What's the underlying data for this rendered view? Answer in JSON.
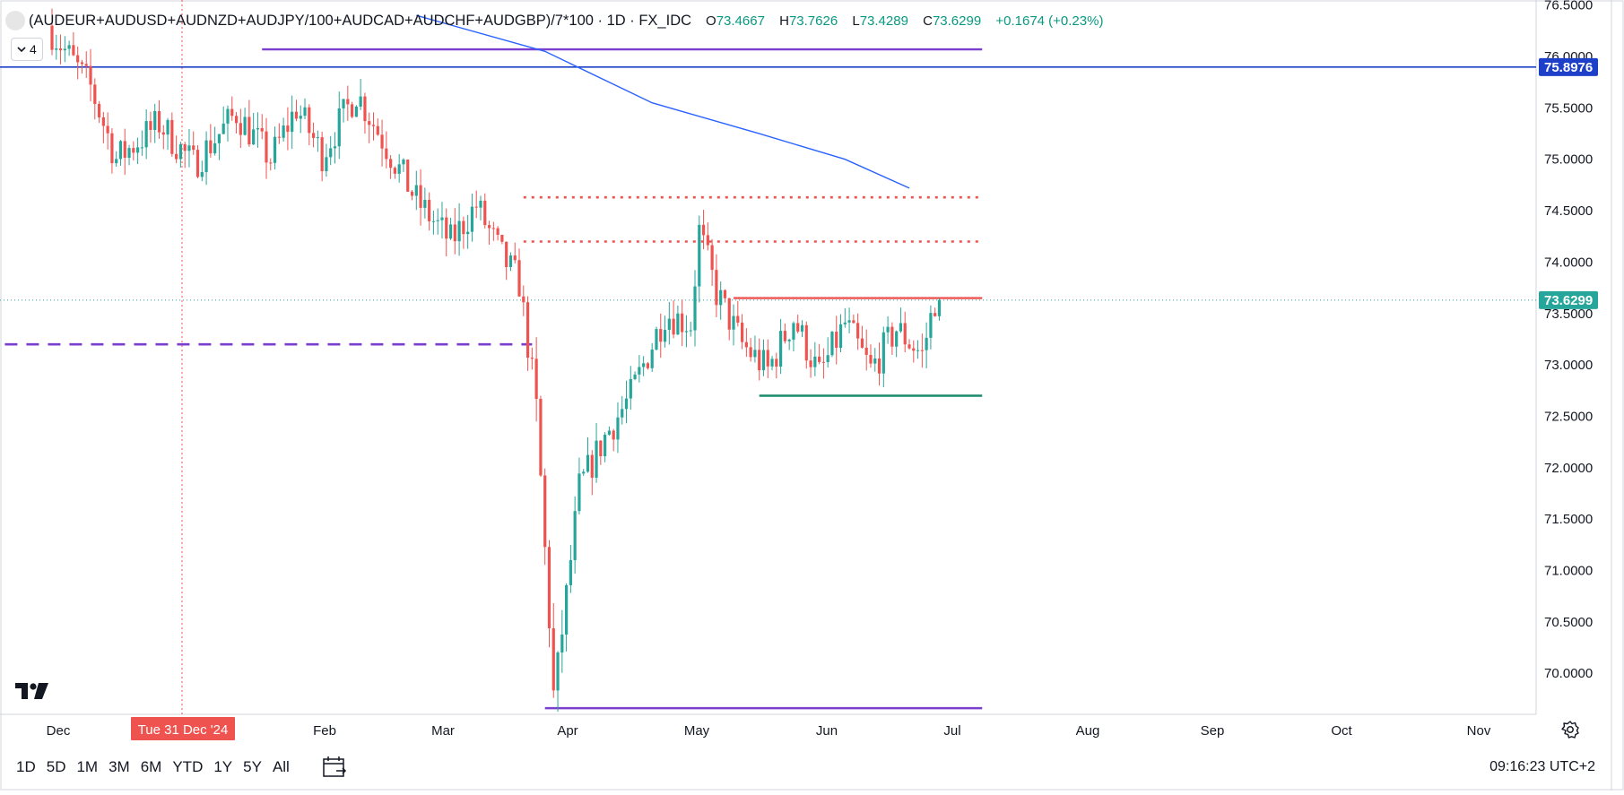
{
  "symbol": "(AUDEUR+AUDUSD+AUDNZD+AUDJPY/100+AUDCAD+AUDCHF+AUDGBP)/7*100 · 1D · FX_IDC",
  "ohlc": {
    "o_label": "O",
    "o": "73.4667",
    "h_label": "H",
    "h": "73.7626",
    "l_label": "L",
    "l": "73.4289",
    "c_label": "C",
    "c": "73.6299",
    "change": "+0.1674 (+0.23%)"
  },
  "collapse_count": "4",
  "ranges": [
    "1D",
    "5D",
    "1M",
    "3M",
    "6M",
    "YTD",
    "1Y",
    "5Y",
    "All"
  ],
  "clock": "09:16:23 UTC+2",
  "colors": {
    "up": "#26a69a",
    "down": "#ef5350",
    "ma": "#2962ff",
    "purple": "#7b3fcf",
    "hline": "#1e40c9"
  },
  "chart_data": {
    "type": "candlestick",
    "y_ticks": [
      "76.5000",
      "76.0000",
      "75.5000",
      "75.0000",
      "74.5000",
      "74.0000",
      "73.5000",
      "73.0000",
      "72.5000",
      "72.0000",
      "71.5000",
      "71.0000",
      "70.5000",
      "70.0000"
    ],
    "ylim": [
      69.6,
      76.55
    ],
    "x_ticks": [
      "Dec",
      "Feb",
      "Mar",
      "Apr",
      "May",
      "Jun",
      "Jul",
      "Aug",
      "Sep",
      "Oct",
      "Nov"
    ],
    "crosshair_date": "Tue 31 Dec '24",
    "last_price": "73.6299",
    "hline_price": "75.8976",
    "anchors": [
      {
        "t": 0,
        "v": 76.3
      },
      {
        "t": 10,
        "v": 75.7
      },
      {
        "t": 16,
        "v": 75.0
      },
      {
        "t": 26,
        "v": 75.35
      },
      {
        "t": 34,
        "v": 74.95
      },
      {
        "t": 44,
        "v": 75.45
      },
      {
        "t": 52,
        "v": 75.0
      },
      {
        "t": 58,
        "v": 75.5
      },
      {
        "t": 64,
        "v": 75.05
      },
      {
        "t": 72,
        "v": 75.65
      },
      {
        "t": 78,
        "v": 75.2
      },
      {
        "t": 86,
        "v": 74.6
      },
      {
        "t": 94,
        "v": 74.2
      },
      {
        "t": 100,
        "v": 74.55
      },
      {
        "t": 106,
        "v": 74.05
      },
      {
        "t": 110,
        "v": 73.8
      },
      {
        "t": 114,
        "v": 72.6
      },
      {
        "t": 118,
        "v": 69.8
      },
      {
        "t": 120,
        "v": 70.4
      },
      {
        "t": 124,
        "v": 71.8
      },
      {
        "t": 130,
        "v": 72.3
      },
      {
        "t": 136,
        "v": 72.7
      },
      {
        "t": 144,
        "v": 73.5
      },
      {
        "t": 150,
        "v": 73.4
      },
      {
        "t": 152,
        "v": 74.3
      },
      {
        "t": 156,
        "v": 73.7
      },
      {
        "t": 162,
        "v": 73.2
      },
      {
        "t": 168,
        "v": 72.95
      },
      {
        "t": 174,
        "v": 73.45
      },
      {
        "t": 180,
        "v": 72.9
      },
      {
        "t": 186,
        "v": 73.4
      },
      {
        "t": 192,
        "v": 72.95
      },
      {
        "t": 198,
        "v": 73.35
      },
      {
        "t": 204,
        "v": 73.1
      },
      {
        "t": 207,
        "v": 73.63
      }
    ],
    "candle_count": 208,
    "moving_average": [
      {
        "t": 85,
        "v": 76.4
      },
      {
        "t": 115,
        "v": 76.05
      },
      {
        "t": 140,
        "v": 75.55
      },
      {
        "t": 165,
        "v": 75.25
      },
      {
        "t": 185,
        "v": 75.0
      },
      {
        "t": 200,
        "v": 74.72
      }
    ],
    "drawings": [
      {
        "type": "solid",
        "color": "purple",
        "t0": 49,
        "t1": 217,
        "v": 76.07
      },
      {
        "type": "solid",
        "color": "purple",
        "t0": 115,
        "t1": 217,
        "v": 69.66
      },
      {
        "type": "dashed",
        "color": "purple",
        "t0": -11,
        "t1": 112,
        "v": 73.2
      },
      {
        "type": "dotted",
        "color": "red",
        "t0": 110,
        "t1": 217,
        "v": 74.63
      },
      {
        "type": "dotted",
        "color": "red",
        "t0": 110,
        "t1": 217,
        "v": 74.2
      },
      {
        "type": "solid",
        "color": "red",
        "t0": 159,
        "t1": 217,
        "v": 73.65
      },
      {
        "type": "solid",
        "color": "green",
        "t0": 165,
        "t1": 217,
        "v": 72.7
      }
    ]
  }
}
